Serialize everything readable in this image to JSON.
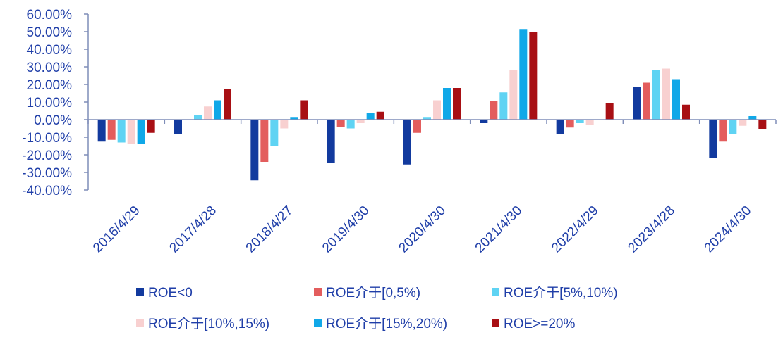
{
  "chart_data": {
    "type": "bar",
    "categories": [
      "2016/4/29",
      "2017/4/28",
      "2018/4/27",
      "2019/4/30",
      "2020/4/30",
      "2021/4/30",
      "2022/4/29",
      "2023/4/28",
      "2024/4/30"
    ],
    "series": [
      {
        "name": "ROE<0",
        "color": "#123a9e",
        "values": [
          -12.5,
          -8,
          -34.5,
          -24.5,
          -25.5,
          -2,
          -8,
          18.5,
          -22
        ]
      },
      {
        "name": "ROE介于[0,5%)",
        "color": "#e35d5d",
        "values": [
          -11.5,
          0,
          -24,
          -4,
          -7.5,
          10.5,
          -4.5,
          21,
          -12.5
        ]
      },
      {
        "name": "ROE介于[5%,10%)",
        "color": "#5fd3f3",
        "values": [
          -13,
          2.5,
          -15,
          -5,
          1.5,
          15.5,
          -2,
          28,
          -8
        ]
      },
      {
        "name": "ROE介于[10%,15%)",
        "color": "#f8d0d0",
        "values": [
          -14,
          7.5,
          -5,
          -2,
          11,
          28,
          -3,
          29,
          -3.5
        ]
      },
      {
        "name": "ROE介于[15%,20%)",
        "color": "#10a8e8",
        "values": [
          -14,
          11,
          1.5,
          4,
          18,
          51.5,
          0,
          23,
          2
        ]
      },
      {
        "name": "ROE>=20%",
        "color": "#a80f14",
        "values": [
          -7.5,
          17.5,
          11,
          4.5,
          18,
          50,
          9.5,
          8.5,
          -5.5
        ]
      }
    ],
    "ylim": [
      -40,
      60
    ],
    "yticks": [
      "60.00%",
      "50.00%",
      "40.00%",
      "30.00%",
      "20.00%",
      "10.00%",
      "0.00%",
      "-10.00%",
      "-20.00%",
      "-30.00%",
      "-40.00%"
    ],
    "ytick_values": [
      60,
      50,
      40,
      30,
      20,
      10,
      0,
      -10,
      -20,
      -30,
      -40
    ],
    "grid": false,
    "legend_position": "bottom",
    "axis_color": "#7f8db8",
    "text_color": "#1f3ea8"
  }
}
